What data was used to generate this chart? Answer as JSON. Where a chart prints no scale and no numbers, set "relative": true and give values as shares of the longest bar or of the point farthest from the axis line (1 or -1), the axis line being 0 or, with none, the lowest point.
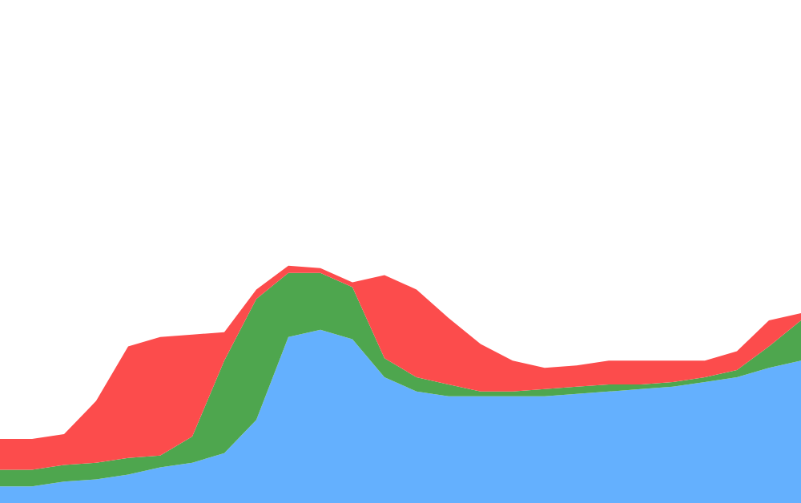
{
  "chart_data": {
    "type": "area",
    "stacked": true,
    "relative": true,
    "grid": false,
    "legend": false,
    "categories": [
      null,
      null,
      null,
      null,
      null,
      null,
      null,
      null,
      null,
      null,
      null,
      null,
      null,
      null,
      null,
      null,
      null,
      null,
      null,
      null,
      null,
      null,
      null,
      null,
      null,
      null
    ],
    "series": [
      {
        "color": "#64b0fe",
        "values": [
          0.07,
          0.07,
          0.09,
          0.1,
          0.12,
          0.15,
          0.17,
          0.21,
          0.35,
          0.7,
          0.73,
          0.69,
          0.53,
          0.47,
          0.45,
          0.45,
          0.45,
          0.45,
          0.46,
          0.47,
          0.48,
          0.49,
          0.51,
          0.53,
          0.57,
          0.6
        ]
      },
      {
        "color": "#4ea64e",
        "values": [
          0.07,
          0.07,
          0.07,
          0.07,
          0.07,
          0.05,
          0.11,
          0.39,
          0.51,
          0.27,
          0.24,
          0.22,
          0.08,
          0.06,
          0.05,
          0.02,
          0.02,
          0.03,
          0.03,
          0.03,
          0.02,
          0.02,
          0.02,
          0.03,
          0.09,
          0.17
        ]
      },
      {
        "color": "#fc4c4c",
        "values": [
          0.13,
          0.13,
          0.13,
          0.26,
          0.47,
          0.5,
          0.43,
          0.12,
          0.04,
          0.03,
          0.02,
          0.02,
          0.35,
          0.37,
          0.28,
          0.2,
          0.13,
          0.09,
          0.09,
          0.1,
          0.1,
          0.09,
          0.07,
          0.08,
          0.11,
          0.03
        ]
      }
    ]
  }
}
